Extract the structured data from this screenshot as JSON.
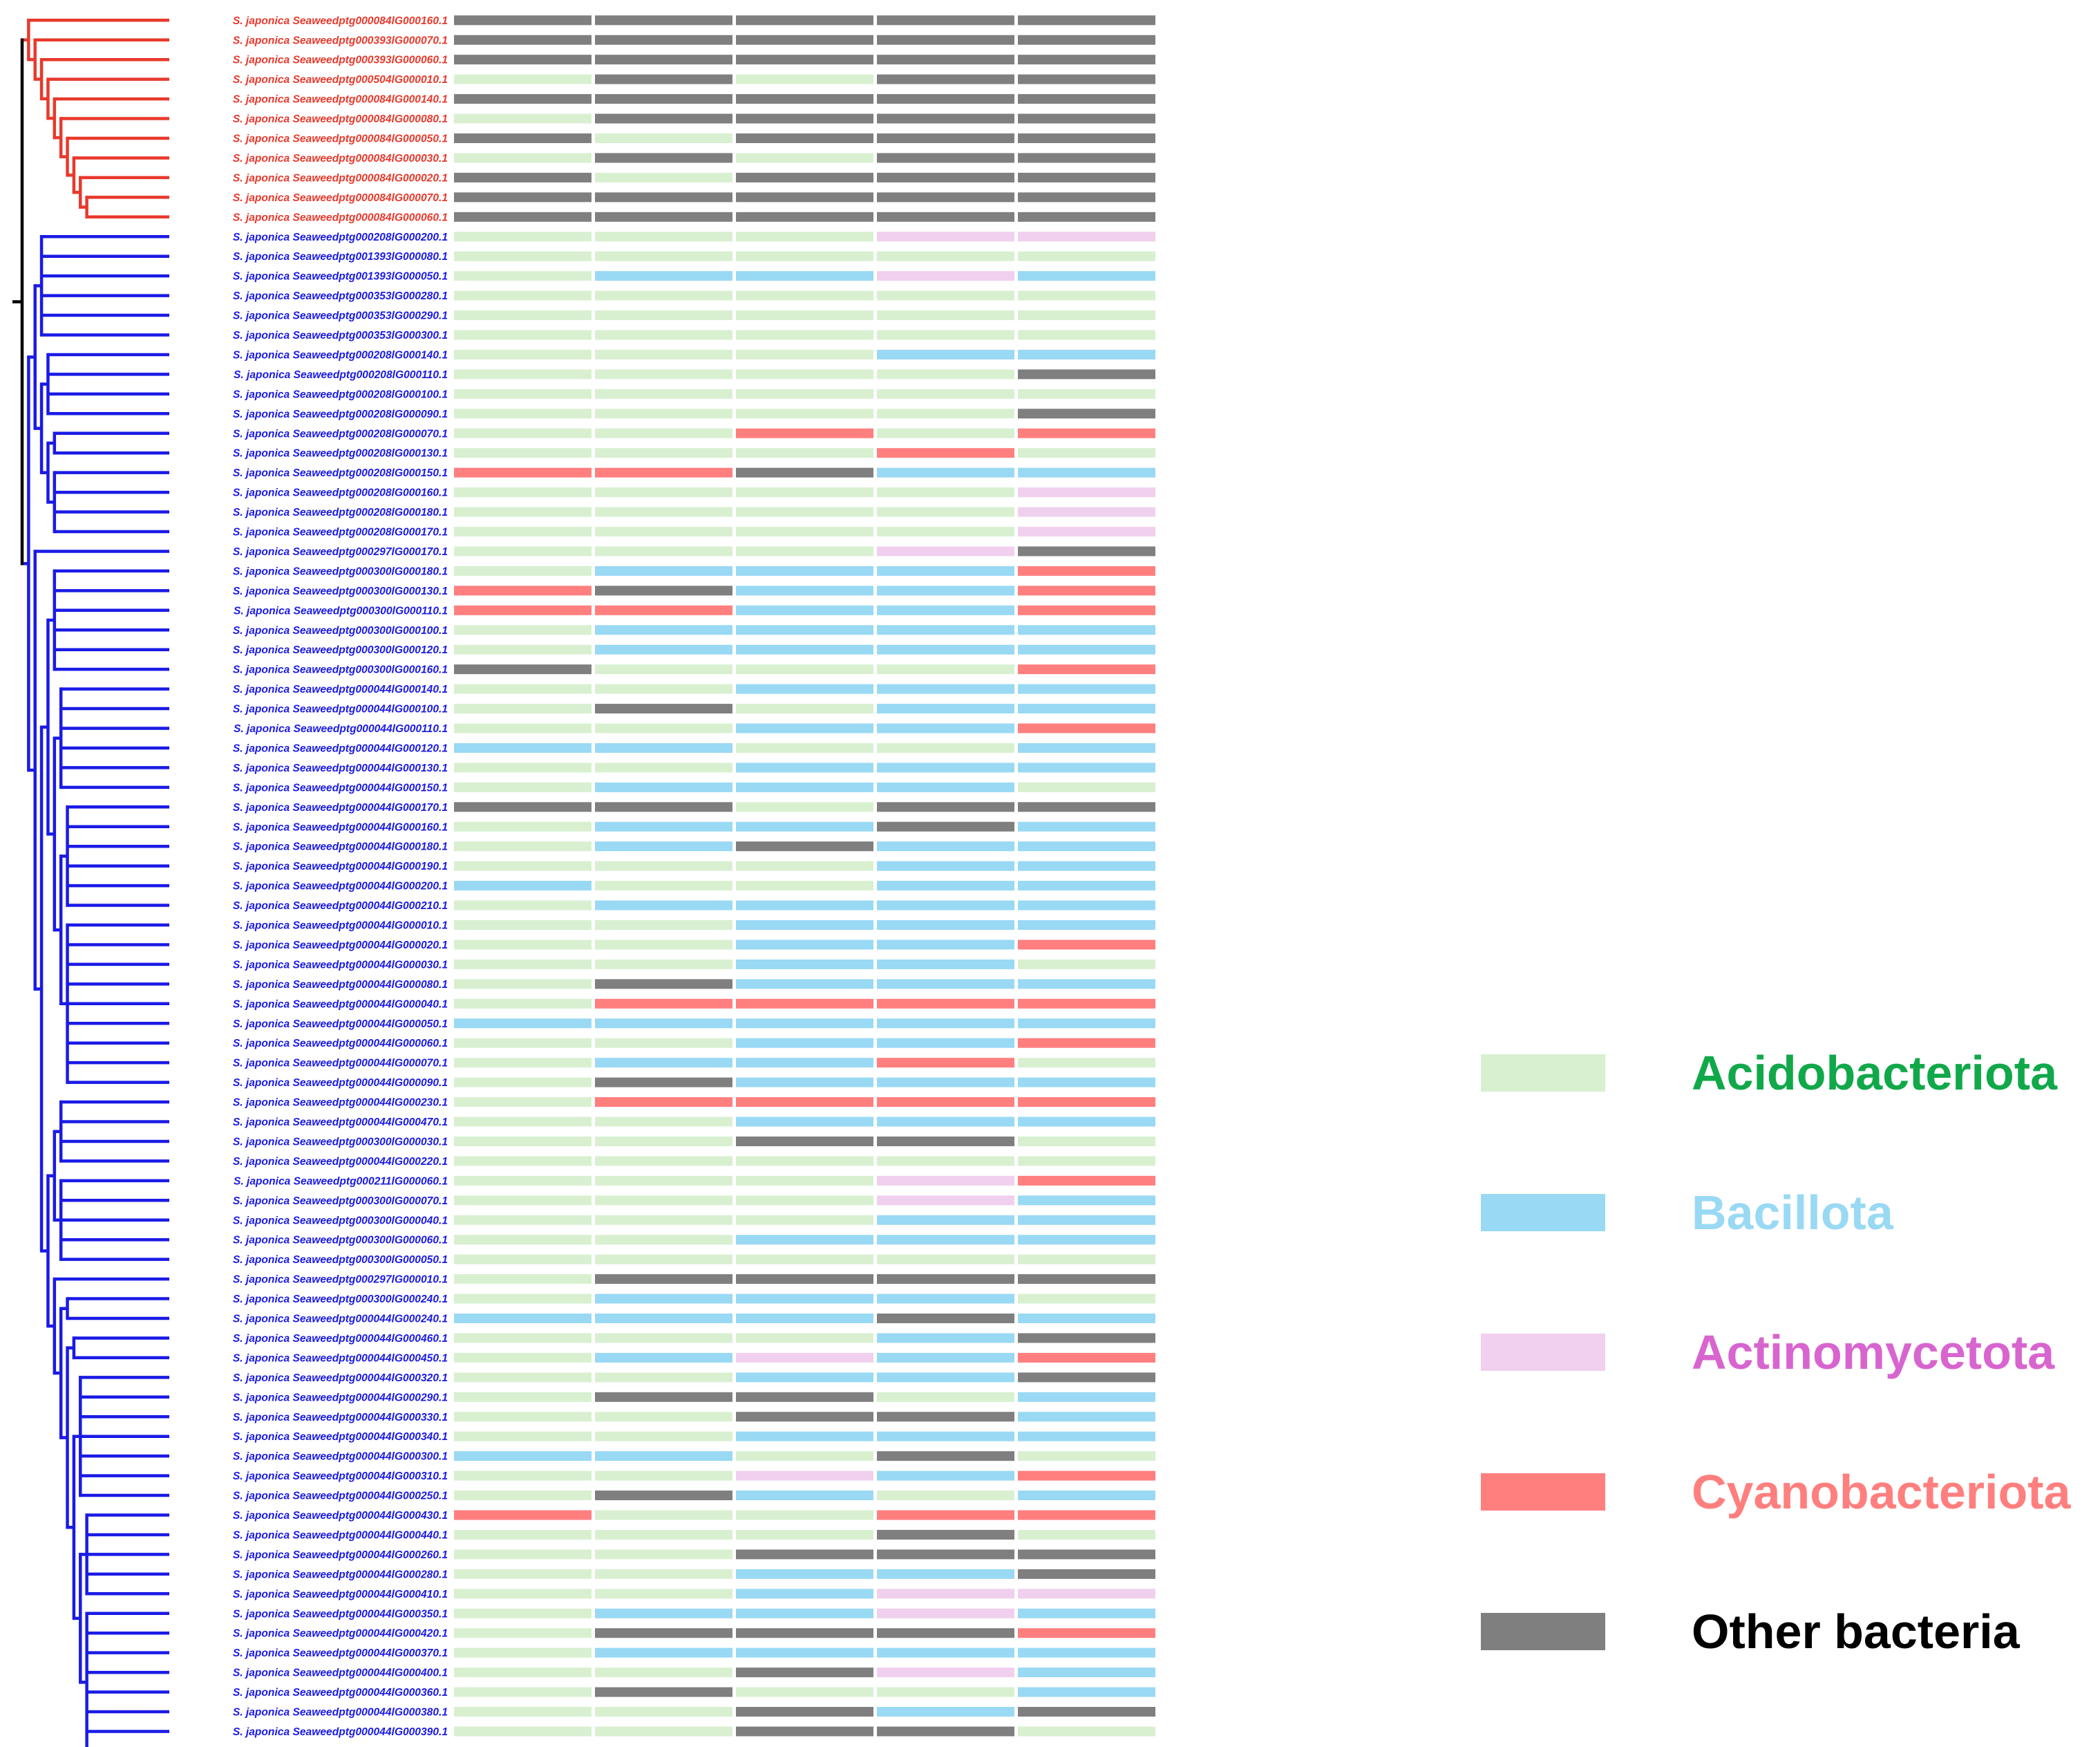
{
  "colors": {
    "Acidobacteriota": "#d8f0d0",
    "Bacillota": "#99d9f4",
    "Actinomycetota": "#f0d0ee",
    "Cyanobacteriota": "#ff7f7f",
    "Other bacteria": "#7f7f7f",
    "clade_red": "#e8392c",
    "clade_blue": "#1a1ae6",
    "root": "#000000"
  },
  "legend": {
    "items": [
      {
        "key": "A",
        "label": "Acidobacteriota",
        "color": "#d8f0d0",
        "text_color": "#11a84a"
      },
      {
        "key": "B",
        "label": "Bacillota",
        "color": "#99d9f4",
        "text_color": "#99d9f4"
      },
      {
        "key": "N",
        "label": "Actinomycetota",
        "color": "#f0d0ee",
        "text_color": "#d865cf"
      },
      {
        "key": "C",
        "label": "Cyanobacteriota",
        "color": "#ff7f7f",
        "text_color": "#ff7f7f"
      },
      {
        "key": "O",
        "label": "Other bacteria",
        "color": "#7f7f7f",
        "text_color": "#000000"
      }
    ]
  },
  "leaves": [
    {
      "label": "S. japonica Seaweedptg000084lG000160.1",
      "clade": "red",
      "cells": "OOOOO"
    },
    {
      "label": "S. japonica Seaweedptg000393lG000070.1",
      "clade": "red",
      "cells": "OOOOO"
    },
    {
      "label": "S. japonica Seaweedptg000393lG000060.1",
      "clade": "red",
      "cells": "OOOOO"
    },
    {
      "label": "S. japonica Seaweedptg000504lG000010.1",
      "clade": "red",
      "cells": "AOAOO"
    },
    {
      "label": "S. japonica Seaweedptg000084lG000140.1",
      "clade": "red",
      "cells": "OOOOO"
    },
    {
      "label": "S. japonica Seaweedptg000084lG000080.1",
      "clade": "red",
      "cells": "AOOOO"
    },
    {
      "label": "S. japonica Seaweedptg000084lG000050.1",
      "clade": "red",
      "cells": "OAOOO"
    },
    {
      "label": "S. japonica Seaweedptg000084lG000030.1",
      "clade": "red",
      "cells": "AOAOO"
    },
    {
      "label": "S. japonica Seaweedptg000084lG000020.1",
      "clade": "red",
      "cells": "OAOOO"
    },
    {
      "label": "S. japonica Seaweedptg000084lG000070.1",
      "clade": "red",
      "cells": "OOOOO"
    },
    {
      "label": "S. japonica Seaweedptg000084lG000060.1",
      "clade": "red",
      "cells": "OOOOO"
    },
    {
      "label": "S. japonica Seaweedptg000208lG000200.1",
      "clade": "blue",
      "cells": "AAANN"
    },
    {
      "label": "S. japonica Seaweedptg001393lG000080.1",
      "clade": "blue",
      "cells": "AAAAA"
    },
    {
      "label": "S. japonica Seaweedptg001393lG000050.1",
      "clade": "blue",
      "cells": "ABBNB"
    },
    {
      "label": "S. japonica Seaweedptg000353lG000280.1",
      "clade": "blue",
      "cells": "AAAAA"
    },
    {
      "label": "S. japonica Seaweedptg000353lG000290.1",
      "clade": "blue",
      "cells": "AAAAA"
    },
    {
      "label": "S. japonica Seaweedptg000353lG000300.1",
      "clade": "blue",
      "cells": "AAAAA"
    },
    {
      "label": "S. japonica Seaweedptg000208lG000140.1",
      "clade": "blue",
      "cells": "AAABB"
    },
    {
      "label": "S. japonica Seaweedptg000208lG000110.1",
      "clade": "blue",
      "cells": "AAAAO"
    },
    {
      "label": "S. japonica Seaweedptg000208lG000100.1",
      "clade": "blue",
      "cells": "AAAAA"
    },
    {
      "label": "S. japonica Seaweedptg000208lG000090.1",
      "clade": "blue",
      "cells": "AAAAO"
    },
    {
      "label": "S. japonica Seaweedptg000208lG000070.1",
      "clade": "blue",
      "cells": "AACAC"
    },
    {
      "label": "S. japonica Seaweedptg000208lG000130.1",
      "clade": "blue",
      "cells": "AAACA"
    },
    {
      "label": "S. japonica Seaweedptg000208lG000150.1",
      "clade": "blue",
      "cells": "CCOBB"
    },
    {
      "label": "S. japonica Seaweedptg000208lG000160.1",
      "clade": "blue",
      "cells": "AAAAN"
    },
    {
      "label": "S. japonica Seaweedptg000208lG000180.1",
      "clade": "blue",
      "cells": "AAAAN"
    },
    {
      "label": "S. japonica Seaweedptg000208lG000170.1",
      "clade": "blue",
      "cells": "AAAAN"
    },
    {
      "label": "S. japonica Seaweedptg000297lG000170.1",
      "clade": "blue",
      "cells": "AAANO"
    },
    {
      "label": "S. japonica Seaweedptg000300lG000180.1",
      "clade": "blue",
      "cells": "ABBBC"
    },
    {
      "label": "S. japonica Seaweedptg000300lG000130.1",
      "clade": "blue",
      "cells": "COBBC"
    },
    {
      "label": "S. japonica Seaweedptg000300lG000110.1",
      "clade": "blue",
      "cells": "CCBBC"
    },
    {
      "label": "S. japonica Seaweedptg000300lG000100.1",
      "clade": "blue",
      "cells": "ABBBB"
    },
    {
      "label": "S. japonica Seaweedptg000300lG000120.1",
      "clade": "blue",
      "cells": "ABBBB"
    },
    {
      "label": "S. japonica Seaweedptg000300lG000160.1",
      "clade": "blue",
      "cells": "OAAAC"
    },
    {
      "label": "S. japonica Seaweedptg000044lG000140.1",
      "clade": "blue",
      "cells": "AABBB"
    },
    {
      "label": "S. japonica Seaweedptg000044lG000100.1",
      "clade": "blue",
      "cells": "AOABB"
    },
    {
      "label": "S. japonica Seaweedptg000044lG000110.1",
      "clade": "blue",
      "cells": "AABBC"
    },
    {
      "label": "S. japonica Seaweedptg000044lG000120.1",
      "clade": "blue",
      "cells": "BBAAB"
    },
    {
      "label": "S. japonica Seaweedptg000044lG000130.1",
      "clade": "blue",
      "cells": "AABBB"
    },
    {
      "label": "S. japonica Seaweedptg000044lG000150.1",
      "clade": "blue",
      "cells": "ABBBA"
    },
    {
      "label": "S. japonica Seaweedptg000044lG000170.1",
      "clade": "blue",
      "cells": "OOAOO"
    },
    {
      "label": "S. japonica Seaweedptg000044lG000160.1",
      "clade": "blue",
      "cells": "ABBOB"
    },
    {
      "label": "S. japonica Seaweedptg000044lG000180.1",
      "clade": "blue",
      "cells": "ABOBB"
    },
    {
      "label": "S. japonica Seaweedptg000044lG000190.1",
      "clade": "blue",
      "cells": "AAABB"
    },
    {
      "label": "S. japonica Seaweedptg000044lG000200.1",
      "clade": "blue",
      "cells": "BAABB"
    },
    {
      "label": "S. japonica Seaweedptg000044lG000210.1",
      "clade": "blue",
      "cells": "ABBBB"
    },
    {
      "label": "S. japonica Seaweedptg000044lG000010.1",
      "clade": "blue",
      "cells": "AABBB"
    },
    {
      "label": "S. japonica Seaweedptg000044lG000020.1",
      "clade": "blue",
      "cells": "AABBC"
    },
    {
      "label": "S. japonica Seaweedptg000044lG000030.1",
      "clade": "blue",
      "cells": "AABBA"
    },
    {
      "label": "S. japonica Seaweedptg000044lG000080.1",
      "clade": "blue",
      "cells": "AOBBB"
    },
    {
      "label": "S. japonica Seaweedptg000044lG000040.1",
      "clade": "blue",
      "cells": "ACCCC"
    },
    {
      "label": "S. japonica Seaweedptg000044lG000050.1",
      "clade": "blue",
      "cells": "BBBBB"
    },
    {
      "label": "S. japonica Seaweedptg000044lG000060.1",
      "clade": "blue",
      "cells": "AABBC"
    },
    {
      "label": "S. japonica Seaweedptg000044lG000070.1",
      "clade": "blue",
      "cells": "ABBCA"
    },
    {
      "label": "S. japonica Seaweedptg000044lG000090.1",
      "clade": "blue",
      "cells": "AOBBB"
    },
    {
      "label": "S. japonica Seaweedptg000044lG000230.1",
      "clade": "blue",
      "cells": "ACCCC"
    },
    {
      "label": "S. japonica Seaweedptg000044lG000470.1",
      "clade": "blue",
      "cells": "AABBB"
    },
    {
      "label": "S. japonica Seaweedptg000300lG000030.1",
      "clade": "blue",
      "cells": "AAOOA"
    },
    {
      "label": "S. japonica Seaweedptg000044lG000220.1",
      "clade": "blue",
      "cells": "AAAAA"
    },
    {
      "label": "S. japonica Seaweedptg000211lG000060.1",
      "clade": "blue",
      "cells": "AAANC"
    },
    {
      "label": "S. japonica Seaweedptg000300lG000070.1",
      "clade": "blue",
      "cells": "AAANB"
    },
    {
      "label": "S. japonica Seaweedptg000300lG000040.1",
      "clade": "blue",
      "cells": "AAABB"
    },
    {
      "label": "S. japonica Seaweedptg000300lG000060.1",
      "clade": "blue",
      "cells": "AABBB"
    },
    {
      "label": "S. japonica Seaweedptg000300lG000050.1",
      "clade": "blue",
      "cells": "AAAAA"
    },
    {
      "label": "S. japonica Seaweedptg000297lG000010.1",
      "clade": "blue",
      "cells": "AOOOO"
    },
    {
      "label": "S. japonica Seaweedptg000300lG000240.1",
      "clade": "blue",
      "cells": "ABBBA"
    },
    {
      "label": "S. japonica Seaweedptg000044lG000240.1",
      "clade": "blue",
      "cells": "BBBOB"
    },
    {
      "label": "S. japonica Seaweedptg000044lG000460.1",
      "clade": "blue",
      "cells": "AAABO"
    },
    {
      "label": "S. japonica Seaweedptg000044lG000450.1",
      "clade": "blue",
      "cells": "ABNBC"
    },
    {
      "label": "S. japonica Seaweedptg000044lG000320.1",
      "clade": "blue",
      "cells": "AABBO"
    },
    {
      "label": "S. japonica Seaweedptg000044lG000290.1",
      "clade": "blue",
      "cells": "AOOAB"
    },
    {
      "label": "S. japonica Seaweedptg000044lG000330.1",
      "clade": "blue",
      "cells": "AAOOB"
    },
    {
      "label": "S. japonica Seaweedptg000044lG000340.1",
      "clade": "blue",
      "cells": "AABBB"
    },
    {
      "label": "S. japonica Seaweedptg000044lG000300.1",
      "clade": "blue",
      "cells": "BBAOA"
    },
    {
      "label": "S. japonica Seaweedptg000044lG000310.1",
      "clade": "blue",
      "cells": "AANBC"
    },
    {
      "label": "S. japonica Seaweedptg000044lG000250.1",
      "clade": "blue",
      "cells": "AOBAB"
    },
    {
      "label": "S. japonica Seaweedptg000044lG000430.1",
      "clade": "blue",
      "cells": "CAACC"
    },
    {
      "label": "S. japonica Seaweedptg000044lG000440.1",
      "clade": "blue",
      "cells": "AAAOA"
    },
    {
      "label": "S. japonica Seaweedptg000044lG000260.1",
      "clade": "blue",
      "cells": "AAOOO"
    },
    {
      "label": "S. japonica Seaweedptg000044lG000280.1",
      "clade": "blue",
      "cells": "AABBO"
    },
    {
      "label": "S. japonica Seaweedptg000044lG000410.1",
      "clade": "blue",
      "cells": "AABNN"
    },
    {
      "label": "S. japonica Seaweedptg000044lG000350.1",
      "clade": "blue",
      "cells": "ABBNB"
    },
    {
      "label": "S. japonica Seaweedptg000044lG000420.1",
      "clade": "blue",
      "cells": "AOOOC"
    },
    {
      "label": "S. japonica Seaweedptg000044lG000370.1",
      "clade": "blue",
      "cells": "ABBBB"
    },
    {
      "label": "S. japonica Seaweedptg000044lG000400.1",
      "clade": "blue",
      "cells": "AAONB"
    },
    {
      "label": "S. japonica Seaweedptg000044lG000360.1",
      "clade": "blue",
      "cells": "AOAAB"
    },
    {
      "label": "S. japonica Seaweedptg000044lG000380.1",
      "clade": "blue",
      "cells": "AAOBO"
    },
    {
      "label": "S. japonica Seaweedptg000044lG000390.1",
      "clade": "blue",
      "cells": "AAOOA"
    }
  ]
}
